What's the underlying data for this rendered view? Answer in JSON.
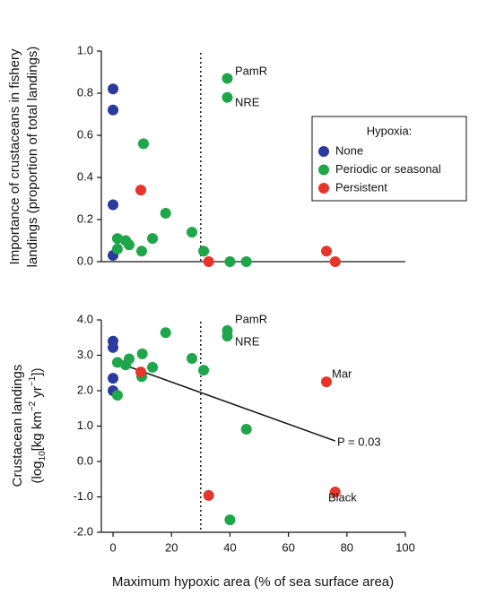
{
  "chart_data": [
    {
      "type": "scatter",
      "ylabel": [
        "Importance of crustaceans in fishery",
        "landings (proportion of total landings)"
      ],
      "xlim": [
        -4,
        100
      ],
      "ylim": [
        0,
        1.0
      ],
      "yticks": [
        {
          "value": 0,
          "label": "0.0"
        },
        0.2,
        0.4,
        0.6,
        0.8,
        {
          "value": 1.0,
          "label": "1.0"
        }
      ],
      "vline": 30,
      "legend": {
        "title": "Hypoxia:",
        "position": "right"
      },
      "series": [
        {
          "name": "None",
          "color": "#2b3a9e",
          "x": [
            0,
            0,
            0,
            0
          ],
          "values": [
            0.82,
            0.72,
            0.27,
            0.03
          ]
        },
        {
          "name": "Periodic or seasonal",
          "color": "#1fa64a",
          "x": [
            10.4,
            1.5,
            1.5,
            4.3,
            5.5,
            9.8,
            13.5,
            18,
            27,
            31,
            39.1,
            39.1,
            40,
            45.6
          ],
          "values": [
            0.56,
            0.11,
            0.06,
            0.1,
            0.08,
            0.05,
            0.11,
            0.23,
            0.14,
            0.05,
            0.87,
            0.78,
            0.0,
            0.0
          ]
        },
        {
          "name": "Persistent",
          "color": "#e8352b",
          "x": [
            9.5,
            32.7,
            73,
            76
          ],
          "values": [
            0.34,
            0.0,
            0.05,
            0.0
          ]
        }
      ],
      "annotations": [
        "PamR",
        "NRE"
      ]
    },
    {
      "type": "scatter",
      "ylabel": [
        "Crustacean landings",
        [
          "(log",
          "10",
          "[kg km",
          "−2",
          " yr",
          "−1",
          "])"
        ]
      ],
      "xlabel": "Maximum hypoxic area (% of sea surface area)",
      "xlim": [
        -4,
        100
      ],
      "ylim": [
        -2.0,
        4.0
      ],
      "xticks": [
        0,
        20,
        40,
        60,
        80,
        100
      ],
      "yticks": [
        {
          "value": -2,
          "label": "-2.0"
        },
        {
          "value": -1,
          "label": "-1.0"
        },
        {
          "value": 0,
          "label": "0.0"
        },
        {
          "value": 1,
          "label": "1.0"
        },
        {
          "value": 2,
          "label": "2.0"
        },
        {
          "value": 3,
          "label": "3.0"
        },
        {
          "value": 4,
          "label": "4.0"
        }
      ],
      "vline": 30,
      "trend": {
        "x": [
          0,
          76
        ],
        "values": [
          2.84,
          0.58
        ]
      },
      "series": [
        {
          "name": "None",
          "color": "#2b3a9e",
          "x": [
            0,
            0,
            0,
            0
          ],
          "values": [
            3.4,
            3.22,
            2.35,
            2.0
          ]
        },
        {
          "name": "Periodic or seasonal",
          "color": "#1fa64a",
          "x": [
            1.5,
            1.5,
            4.3,
            5.5,
            9.8,
            10,
            13.5,
            18,
            27,
            31,
            39.1,
            39.1,
            45.6,
            40
          ],
          "values": [
            2.8,
            1.87,
            2.73,
            2.9,
            2.4,
            3.04,
            2.66,
            3.64,
            2.91,
            2.58,
            3.7,
            3.54,
            0.91,
            -1.65
          ]
        },
        {
          "name": "Persistent",
          "color": "#e8352b",
          "x": [
            9.5,
            32.7,
            73,
            76
          ],
          "values": [
            2.53,
            -0.96,
            2.25,
            -0.86
          ]
        }
      ],
      "annotations": [
        "PamR",
        "NRE",
        "Mar",
        "Black",
        "P = 0.03"
      ]
    }
  ]
}
